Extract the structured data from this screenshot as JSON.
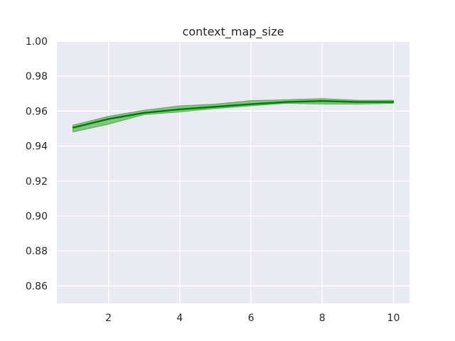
{
  "chart_data": {
    "type": "line",
    "title": "context_map_size",
    "xlabel": "",
    "ylabel": "",
    "xlim": [
      0.55,
      10.45
    ],
    "ylim": [
      0.85,
      1.0
    ],
    "x_ticks": [
      2,
      4,
      6,
      8,
      10
    ],
    "x_tick_labels": [
      "2",
      "4",
      "6",
      "8",
      "10"
    ],
    "y_ticks": [
      0.86,
      0.88,
      0.9,
      0.92,
      0.94,
      0.96,
      0.98,
      1.0
    ],
    "y_tick_labels": [
      "0.86",
      "0.88",
      "0.90",
      "0.92",
      "0.94",
      "0.96",
      "0.98",
      "1.00"
    ],
    "grid": true,
    "legend": "none",
    "colors": {
      "background": "#eaeaf2",
      "grid": "#ffffff",
      "line": "#007a00",
      "band": "#2e9e2e"
    },
    "series": [
      {
        "x": [
          1,
          2,
          3,
          4,
          5,
          6,
          7,
          8,
          9,
          10
        ],
        "values": [
          0.9505,
          0.9555,
          0.959,
          0.961,
          0.9625,
          0.964,
          0.9652,
          0.9658,
          0.9652,
          0.9652
        ],
        "band_upper": [
          0.952,
          0.957,
          0.9605,
          0.963,
          0.964,
          0.966,
          0.9665,
          0.9672,
          0.9662,
          0.9662
        ],
        "band_lower": [
          0.948,
          0.9525,
          0.958,
          0.9595,
          0.9615,
          0.963,
          0.9645,
          0.964,
          0.964,
          0.9645
        ]
      }
    ]
  }
}
